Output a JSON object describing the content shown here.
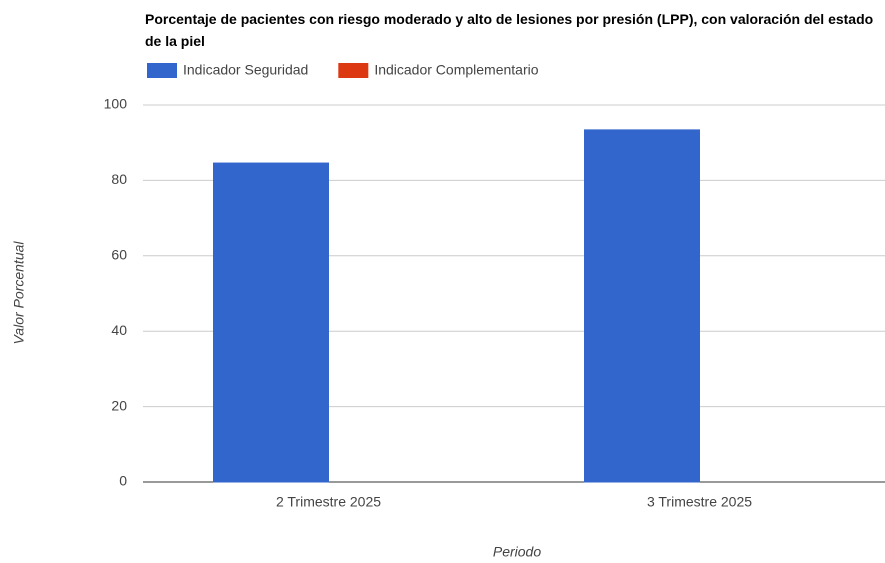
{
  "chart_data": {
    "type": "bar",
    "title": "Porcentaje de pacientes con riesgo moderado y alto de lesiones por presión (LPP), con valoración del estado de la piel",
    "x_label": "Periodo",
    "y_label": "Valor Porcentual",
    "categories": [
      "2 Trimestre 2025",
      "3 Trimestre 2025"
    ],
    "series": [
      {
        "name": "Indicador Seguridad",
        "color": "#3366cc",
        "values": [
          84.6,
          93.4
        ]
      },
      {
        "name": "Indicador Complementario",
        "color": "#dc3912",
        "values": [
          0,
          0
        ]
      }
    ],
    "ylim": [
      0,
      100
    ],
    "yticks": [
      0,
      20,
      40,
      60,
      80,
      100
    ],
    "grid": true,
    "legend": "top"
  }
}
